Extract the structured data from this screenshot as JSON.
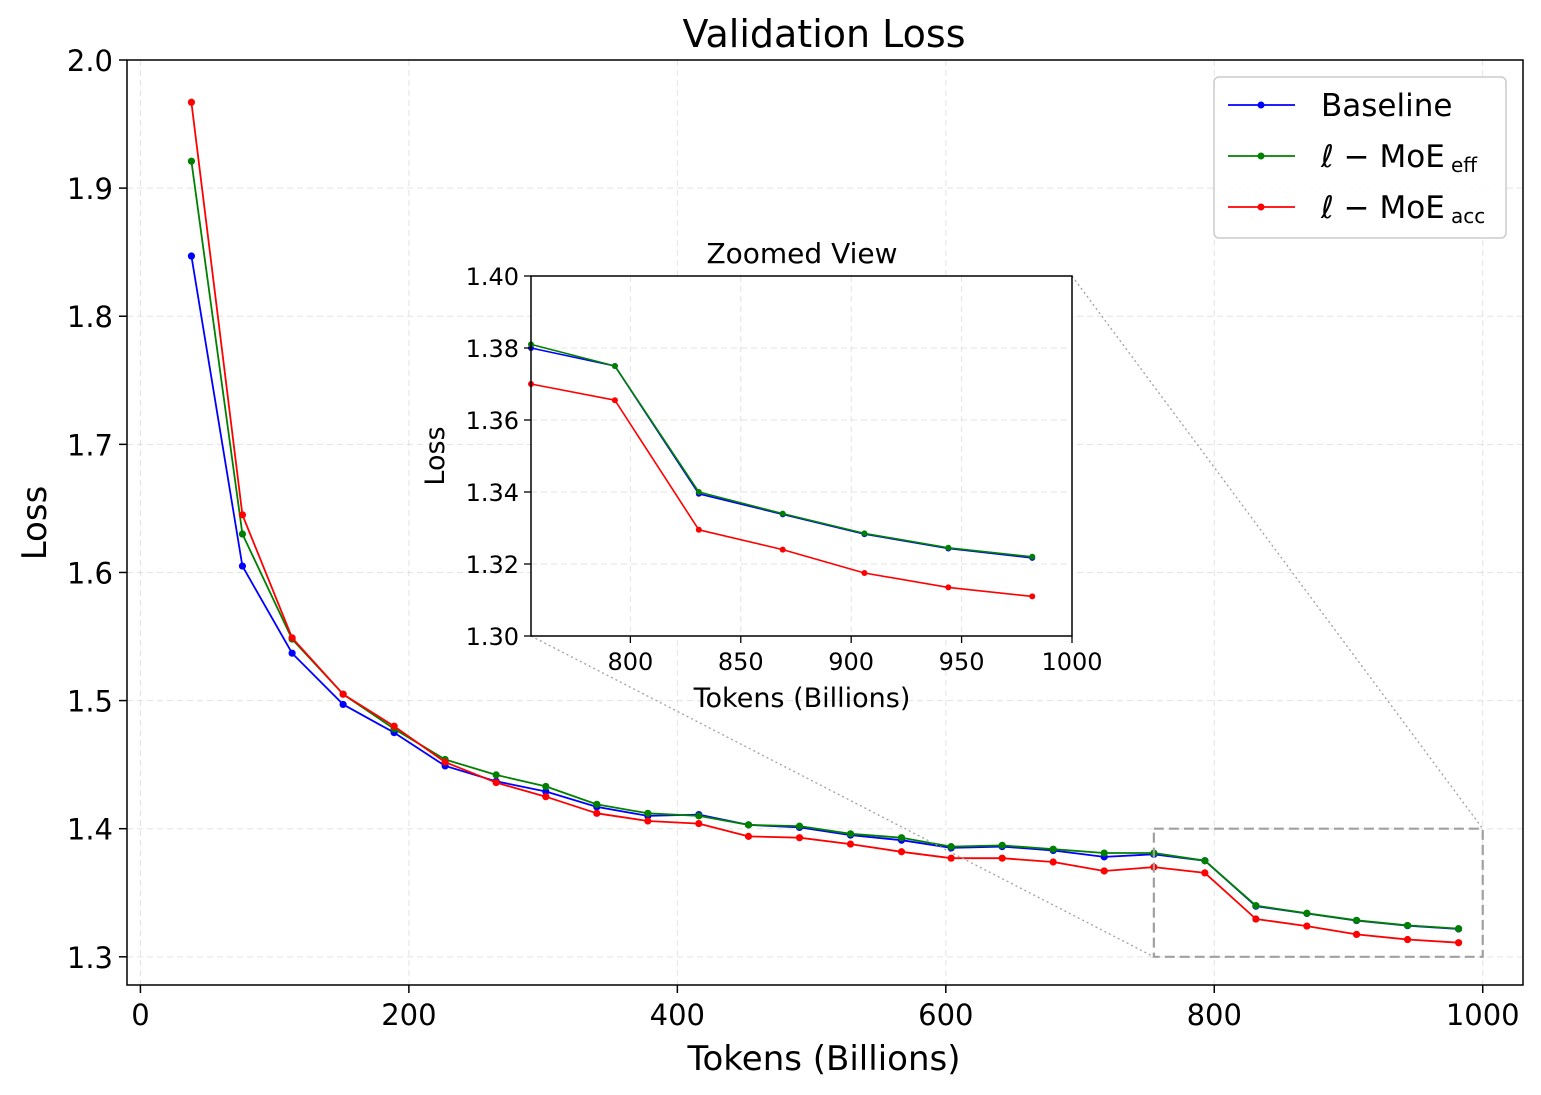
{
  "chart_data": [
    {
      "id": "main",
      "type": "line",
      "title": "Validation Loss",
      "xlabel": "Tokens (Billions)",
      "ylabel": "Loss",
      "xlim": [
        -10,
        1030
      ],
      "ylim": [
        1.278,
        2.0
      ],
      "xticks": [
        0,
        200,
        400,
        600,
        800,
        1000
      ],
      "yticks": [
        1.3,
        1.4,
        1.5,
        1.6,
        1.7,
        1.8,
        1.9,
        2.0
      ],
      "grid": true,
      "legend_position": "top-right",
      "x": [
        38,
        76,
        113,
        151,
        189,
        227,
        265,
        302,
        340,
        378,
        416,
        453,
        491,
        529,
        567,
        604,
        642,
        680,
        718,
        755,
        793,
        831,
        869,
        906,
        944,
        982
      ],
      "series": [
        {
          "name": "Baseline",
          "color": "#0000ff",
          "values": [
            1.847,
            1.605,
            1.537,
            1.497,
            1.475,
            1.449,
            1.437,
            1.429,
            1.417,
            1.41,
            1.411,
            1.403,
            1.401,
            1.395,
            1.391,
            1.385,
            1.386,
            1.383,
            1.378,
            1.38,
            1.375,
            1.3395,
            1.3338,
            1.3283,
            1.3243,
            1.3217
          ]
        },
        {
          "name": "ℓ − MoE",
          "subscript": "eff",
          "color": "#008000",
          "values": [
            1.921,
            1.63,
            1.548,
            1.505,
            1.478,
            1.454,
            1.442,
            1.433,
            1.419,
            1.412,
            1.41,
            1.403,
            1.402,
            1.396,
            1.393,
            1.386,
            1.387,
            1.384,
            1.381,
            1.381,
            1.375,
            1.34,
            1.334,
            1.3285,
            1.3245,
            1.322
          ]
        },
        {
          "name": "ℓ − MoE",
          "subscript": "acc",
          "color": "#ff0000",
          "values": [
            1.967,
            1.645,
            1.549,
            1.505,
            1.48,
            1.452,
            1.436,
            1.425,
            1.412,
            1.406,
            1.404,
            1.394,
            1.393,
            1.388,
            1.382,
            1.377,
            1.377,
            1.374,
            1.367,
            1.37,
            1.3655,
            1.3295,
            1.324,
            1.3175,
            1.3135,
            1.311
          ]
        }
      ],
      "zoom_box": {
        "x_range": [
          755,
          1000
        ],
        "y_range": [
          1.3,
          1.4
        ]
      }
    },
    {
      "id": "inset",
      "type": "line",
      "title": "Zoomed View",
      "xlabel": "Tokens (Billions)",
      "ylabel": "Loss",
      "xlim": [
        755,
        1000
      ],
      "ylim": [
        1.3,
        1.4
      ],
      "xticks": [
        800,
        850,
        900,
        950,
        1000
      ],
      "yticks": [
        1.3,
        1.32,
        1.34,
        1.36,
        1.38,
        1.4
      ],
      "grid": true,
      "note": "same series as main chart, restricted to x >= 755"
    }
  ]
}
